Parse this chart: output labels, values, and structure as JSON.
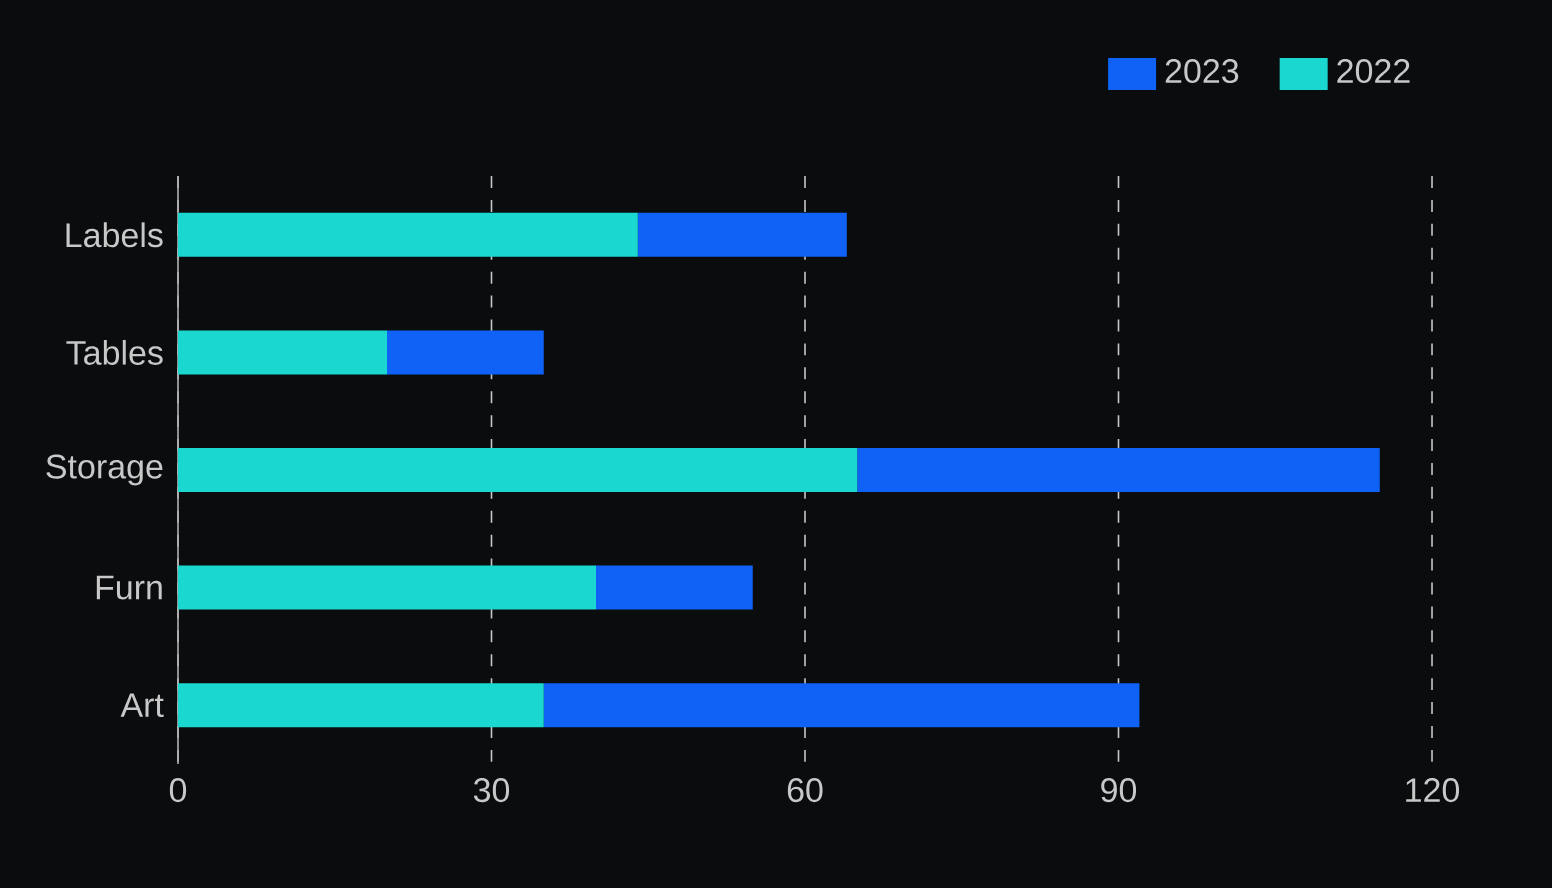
{
  "chart_data": {
    "type": "bar",
    "orientation": "horizontal",
    "stacked": true,
    "categories": [
      "Labels",
      "Tables",
      "Storage",
      "Furn",
      "Art"
    ],
    "series": [
      {
        "name": "2022",
        "color": "#1ad8d0",
        "values": [
          44,
          20,
          65,
          40,
          35
        ]
      },
      {
        "name": "2023",
        "color": "#0f62f5",
        "values": [
          20,
          15,
          50,
          15,
          57
        ]
      }
    ],
    "xlim": [
      0,
      120
    ],
    "xticks": [
      0,
      30,
      60,
      90,
      120
    ],
    "grid": "x",
    "legend": "top right"
  }
}
